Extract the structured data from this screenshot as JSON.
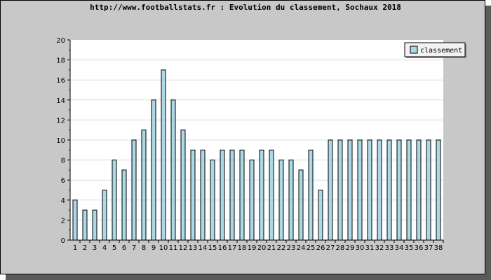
{
  "chart_data": {
    "type": "bar",
    "title": "http://www.footballstats.fr : Evolution du classement, Sochaux 2018",
    "xlabel": "",
    "ylabel": "",
    "categories": [
      "1",
      "2",
      "3",
      "4",
      "5",
      "6",
      "7",
      "8",
      "9",
      "10",
      "11",
      "12",
      "13",
      "14",
      "15",
      "16",
      "17",
      "18",
      "19",
      "20",
      "21",
      "22",
      "23",
      "24",
      "25",
      "26",
      "27",
      "28",
      "29",
      "30",
      "31",
      "32",
      "33",
      "34",
      "35",
      "36",
      "37",
      "38"
    ],
    "series": [
      {
        "name": "classement",
        "values": [
          4,
          3,
          3,
          5,
          8,
          7,
          10,
          11,
          14,
          17,
          14,
          11,
          9,
          9,
          8,
          9,
          9,
          9,
          8,
          9,
          9,
          8,
          8,
          7,
          9,
          5,
          10,
          10,
          10,
          10,
          10,
          10,
          10,
          10,
          10,
          10,
          10,
          10
        ]
      }
    ],
    "ylim": [
      0,
      20
    ],
    "yticks": [
      0,
      2,
      4,
      6,
      8,
      10,
      12,
      14,
      16,
      18,
      20
    ],
    "grid": true,
    "legend_position": "top-right",
    "colors": {
      "bar_fill": "#add8e6",
      "bar_stroke": "#000000",
      "plot_bg": "#ffffff",
      "outer_bg": "#c8c8c8",
      "grid": "#dcdcdc"
    }
  }
}
